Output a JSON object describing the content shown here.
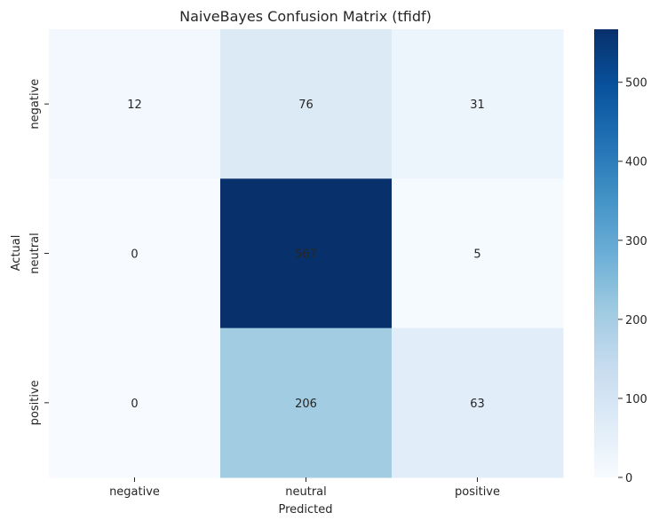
{
  "chart_data": {
    "type": "heatmap",
    "title": "NaiveBayes Confusion Matrix (tfidf)",
    "xlabel": "Predicted",
    "ylabel": "Actual",
    "x_categories": [
      "negative",
      "neutral",
      "positive"
    ],
    "y_categories": [
      "negative",
      "neutral",
      "positive"
    ],
    "values": [
      [
        12,
        76,
        31
      ],
      [
        0,
        567,
        5
      ],
      [
        0,
        206,
        63
      ]
    ],
    "colormap": "Blues",
    "color_low": "#f7fbff",
    "color_high": "#08306b",
    "vmin": 0,
    "vmax": 567,
    "colorbar_ticks": [
      0,
      100,
      200,
      300,
      400,
      500
    ],
    "annotations": true
  }
}
